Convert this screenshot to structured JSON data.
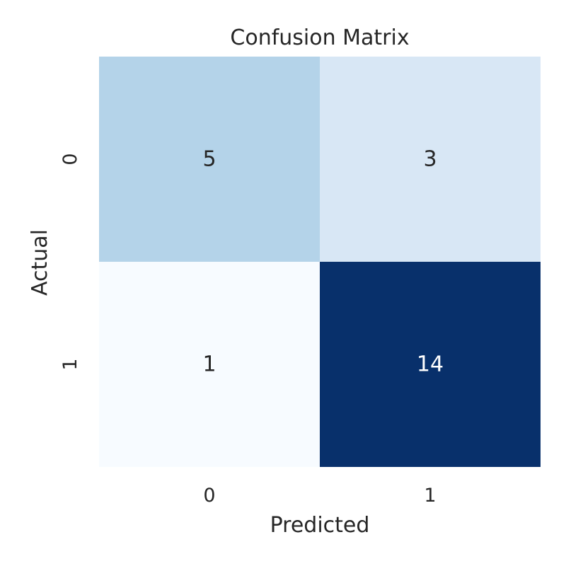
{
  "chart_data": {
    "type": "heatmap",
    "title": "Confusion Matrix",
    "xlabel": "Predicted",
    "ylabel": "Actual",
    "x_categories": [
      "0",
      "1"
    ],
    "y_categories": [
      "0",
      "1"
    ],
    "values": [
      [
        5,
        3
      ],
      [
        1,
        14
      ]
    ],
    "colormap": "Blues",
    "colorbar": false,
    "vmin": 1,
    "vmax": 14
  }
}
